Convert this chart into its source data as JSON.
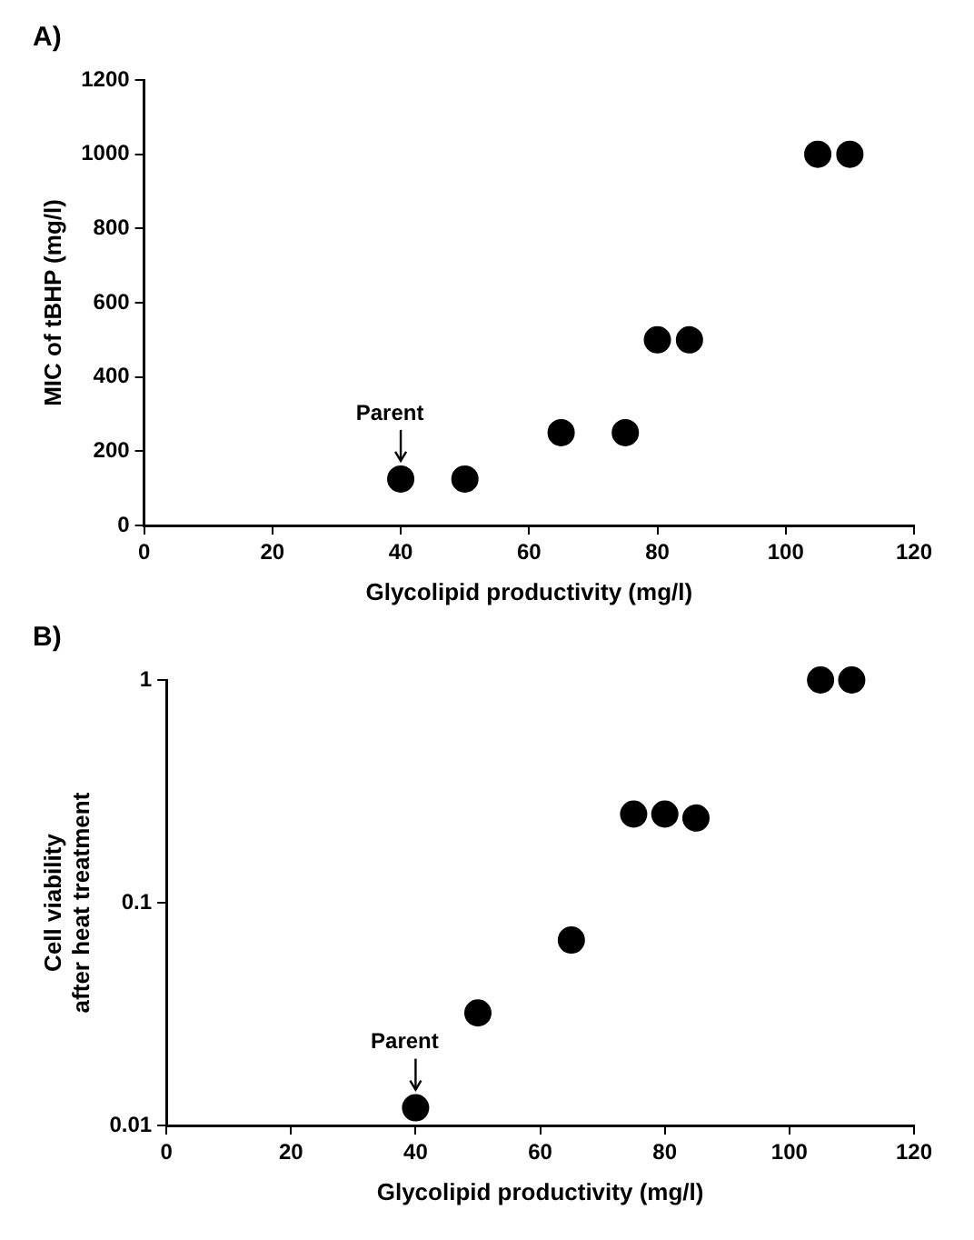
{
  "chart_data": [
    {
      "type": "scatter",
      "title": "A)",
      "xlabel": "Glycolipid productivity (mg/l)",
      "ylabel": "MIC of tBHP (mg/l)",
      "x": [
        40,
        50,
        65,
        75,
        80,
        85,
        105,
        110
      ],
      "values": [
        125,
        125,
        250,
        250,
        500,
        500,
        1000,
        1000
      ],
      "color": "#000000",
      "marker": "circle",
      "xlim": [
        0,
        120
      ],
      "xticks": [
        0,
        20,
        40,
        60,
        80,
        100,
        120
      ],
      "ylim": [
        0,
        1200
      ],
      "yticks": [
        0,
        200,
        400,
        600,
        800,
        1000,
        1200
      ],
      "grid": false,
      "legend": false,
      "annotations": [
        {
          "text": "Parent",
          "x": 40,
          "y": 125
        }
      ]
    },
    {
      "type": "scatter",
      "title": "B)",
      "xlabel": "Glycolipid productivity (mg/l)",
      "ylabel": "Cell viability\nafter heat treatment",
      "x": [
        40,
        50,
        65,
        75,
        80,
        85,
        105,
        110
      ],
      "values": [
        0.012,
        0.032,
        0.068,
        0.25,
        0.25,
        0.24,
        1,
        1
      ],
      "color": "#000000",
      "marker": "circle",
      "log": "y",
      "xlim": [
        0,
        120
      ],
      "xticks": [
        0,
        20,
        40,
        60,
        80,
        100,
        120
      ],
      "ylim": [
        0.01,
        1
      ],
      "yticks": [
        0.01,
        0.1,
        1
      ],
      "grid": false,
      "legend": false,
      "annotations": [
        {
          "text": "Parent",
          "x": 40,
          "y": 0.012
        }
      ]
    }
  ]
}
